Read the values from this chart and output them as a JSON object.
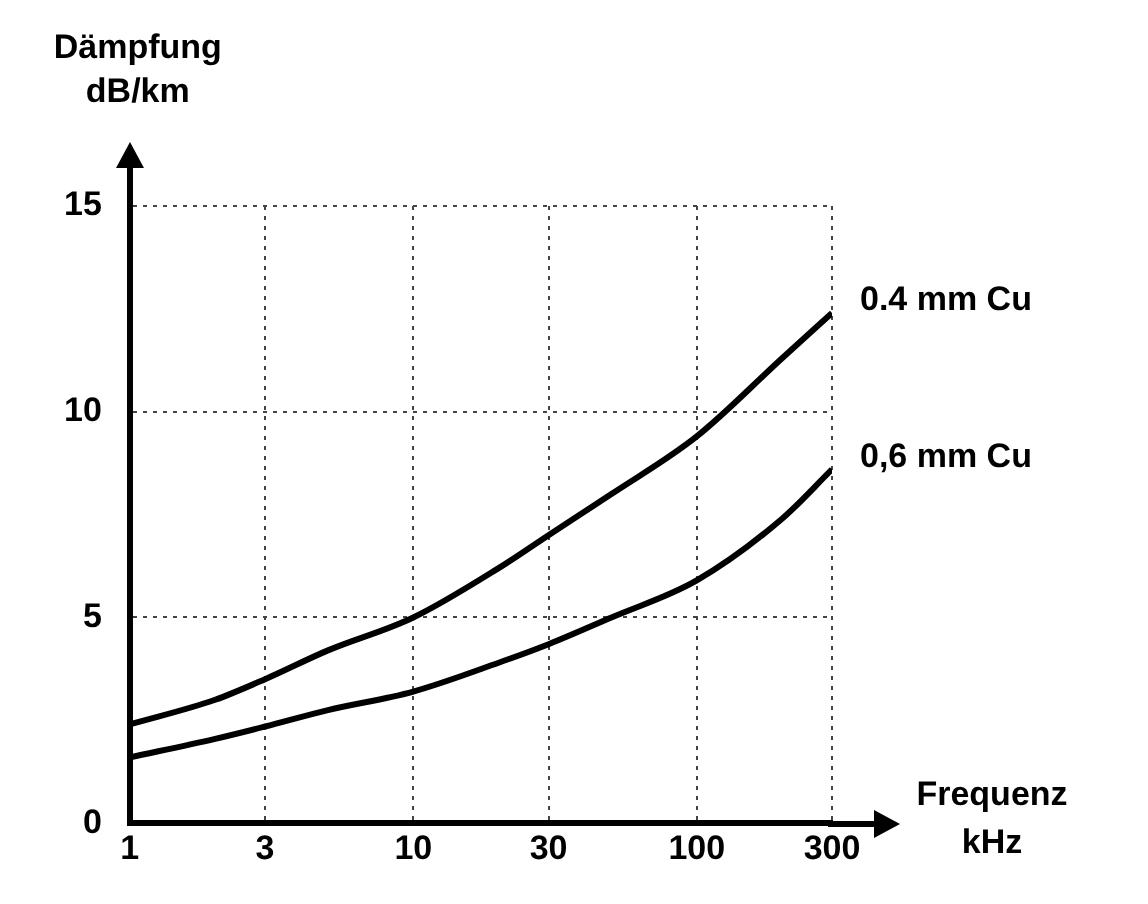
{
  "chart_data": {
    "type": "line",
    "xlabel": "Frequenz\nkHz",
    "ylabel": "Dämpfung\ndB/km",
    "log": "x",
    "x": [
      1,
      2,
      3,
      5,
      10,
      20,
      30,
      50,
      100,
      200,
      300
    ],
    "series": [
      {
        "name": "0.4 mm Cu",
        "color": "#000000",
        "values": [
          2.4,
          3.0,
          3.5,
          4.2,
          5.0,
          6.2,
          7.0,
          8.0,
          9.4,
          11.3,
          12.4
        ]
      },
      {
        "name": "0,6 mm Cu",
        "color": "#000000",
        "values": [
          1.6,
          2.05,
          2.35,
          2.75,
          3.2,
          3.9,
          4.35,
          5.0,
          5.9,
          7.4,
          8.6
        ]
      }
    ],
    "xlim": [
      1,
      300
    ],
    "xticks": [
      1,
      3,
      10,
      30,
      100,
      300
    ],
    "ylim": [
      0,
      15
    ],
    "yticks": [
      0,
      5,
      10,
      15
    ],
    "grid": true,
    "legend": false,
    "marker": "none",
    "line_style": "solid"
  }
}
